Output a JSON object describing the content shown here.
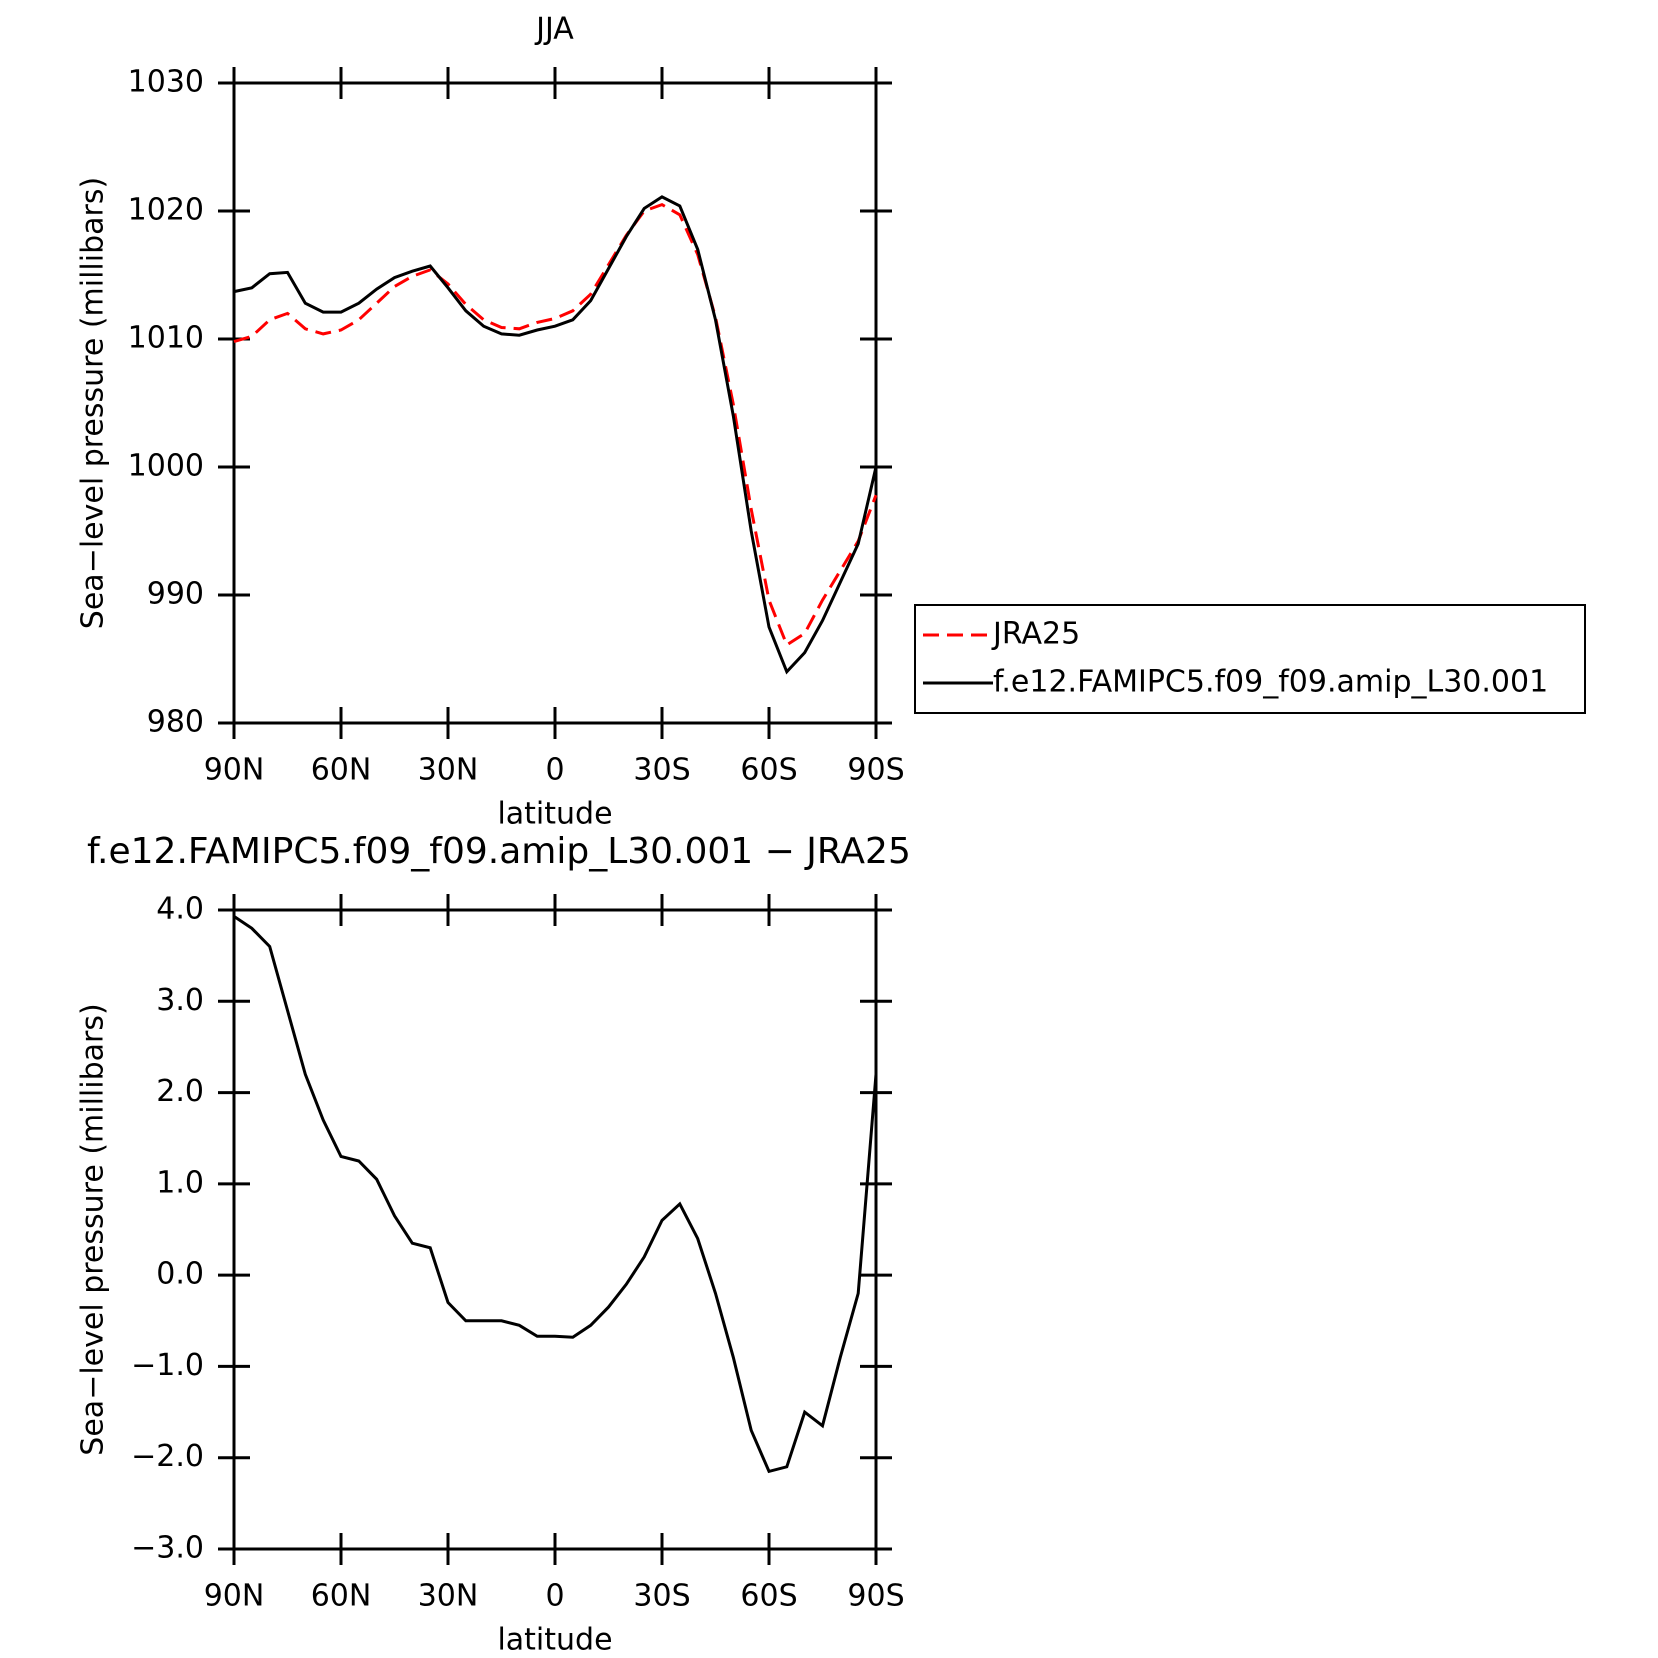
{
  "chart_data": [
    {
      "type": "line",
      "title": "JJA",
      "xlabel": "latitude",
      "ylabel": "Sea−level pressure (millibars)",
      "x": [
        90,
        85,
        80,
        75,
        70,
        65,
        60,
        55,
        50,
        45,
        40,
        35,
        30,
        25,
        20,
        15,
        10,
        5,
        0,
        -5,
        -10,
        -15,
        -20,
        -25,
        -30,
        -35,
        -40,
        -45,
        -50,
        -55,
        -60,
        -65,
        -70,
        -75,
        -80,
        -85,
        -90
      ],
      "xlim": [
        90,
        -90
      ],
      "xticks": [
        {
          "value": 90,
          "label": "90N"
        },
        {
          "value": 60,
          "label": "60N"
        },
        {
          "value": 30,
          "label": "30N"
        },
        0,
        {
          "value": -30,
          "label": "30S"
        },
        {
          "value": -60,
          "label": "60S"
        },
        {
          "value": -90,
          "label": "90S"
        }
      ],
      "ylim": [
        980,
        1030
      ],
      "yticks": [
        980,
        990,
        1000,
        1010,
        1020,
        1030
      ],
      "legend": "right",
      "series": [
        {
          "name": "JRA25",
          "color": "#ff0000",
          "line_style": "dashed",
          "values": [
            1009.8,
            1010.2,
            1011.5,
            1012.0,
            1010.8,
            1010.4,
            1010.7,
            1011.5,
            1012.8,
            1014.1,
            1014.9,
            1015.4,
            1014.3,
            1012.7,
            1011.5,
            1010.9,
            1010.8,
            1011.3,
            1011.6,
            1012.2,
            1013.5,
            1015.8,
            1018.1,
            1020.0,
            1020.5,
            1019.7,
            1016.6,
            1011.7,
            1004.9,
            996.7,
            989.6,
            986.1,
            987.0,
            989.6,
            991.9,
            994.2,
            997.8
          ]
        },
        {
          "name": "f.e12.FAMIPC5.f09_f09.amip_L30.001",
          "color": "#000000",
          "line_style": "solid",
          "values": [
            1013.7,
            1014.0,
            1015.1,
            1015.2,
            1012.8,
            1012.1,
            1012.1,
            1012.8,
            1013.9,
            1014.8,
            1015.3,
            1015.7,
            1014.0,
            1012.2,
            1011.0,
            1010.4,
            1010.3,
            1010.7,
            1011.0,
            1011.5,
            1013.0,
            1015.5,
            1018.0,
            1020.2,
            1021.1,
            1020.4,
            1017.0,
            1011.5,
            1004.0,
            995.0,
            987.5,
            984.0,
            985.5,
            988.0,
            991.0,
            994.0,
            1000.0
          ]
        }
      ]
    },
    {
      "type": "line",
      "title": "f.e12.FAMIPC5.f09_f09.amip_L30.001 − JRA25",
      "xlabel": "latitude",
      "ylabel": "Sea−level pressure (millibars)",
      "x": [
        90,
        85,
        80,
        75,
        70,
        65,
        60,
        55,
        50,
        45,
        40,
        35,
        30,
        25,
        20,
        15,
        10,
        5,
        0,
        -5,
        -10,
        -15,
        -20,
        -25,
        -30,
        -35,
        -40,
        -45,
        -50,
        -55,
        -60,
        -65,
        -70,
        -75,
        -80,
        -85,
        -90
      ],
      "xlim": [
        90,
        -90
      ],
      "xticks": [
        {
          "value": 90,
          "label": "90N"
        },
        {
          "value": 60,
          "label": "60N"
        },
        {
          "value": 30,
          "label": "30N"
        },
        0,
        {
          "value": -30,
          "label": "30S"
        },
        {
          "value": -60,
          "label": "60S"
        },
        {
          "value": -90,
          "label": "90S"
        }
      ],
      "ylim": [
        -3,
        4
      ],
      "yticks": [
        {
          "value": -3,
          "label": "−3.0"
        },
        {
          "value": -2,
          "label": "−2.0"
        },
        {
          "value": -1,
          "label": "−1.0"
        },
        {
          "value": 0,
          "label": "0.0"
        },
        {
          "value": 1,
          "label": "1.0"
        },
        {
          "value": 2,
          "label": "2.0"
        },
        {
          "value": 3,
          "label": "3.0"
        },
        {
          "value": 4,
          "label": "4.0"
        }
      ],
      "series": [
        {
          "color": "#000000",
          "line_style": "solid",
          "values": [
            3.93,
            3.8,
            3.6,
            2.9,
            2.2,
            1.7,
            1.3,
            1.25,
            1.05,
            0.65,
            0.35,
            0.3,
            -0.3,
            -0.5,
            -0.5,
            -0.5,
            -0.55,
            -0.67,
            -0.67,
            -0.68,
            -0.55,
            -0.35,
            -0.1,
            0.2,
            0.6,
            0.78,
            0.4,
            -0.2,
            -0.9,
            -1.7,
            -2.15,
            -2.1,
            -1.5,
            -1.65,
            -0.9,
            -0.2,
            2.2
          ]
        }
      ]
    }
  ]
}
